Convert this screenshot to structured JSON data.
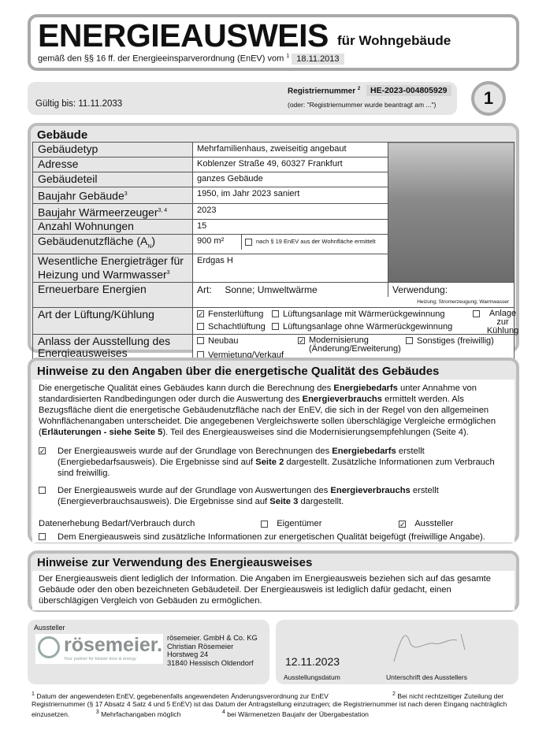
{
  "header": {
    "title": "ENERGIEAUSWEIS",
    "subtitle": "für Wohngebäude",
    "regulation": "gemäß den §§ 16 ff. der Energieeinsparverordnung (EnEV) vom",
    "regulation_sup": "1",
    "regulation_date": "18.11.2013"
  },
  "bar": {
    "valid": "Gültig bis: 11.11.2033",
    "reg_label": "Registriernummer",
    "reg_sup": "2",
    "reg_number": "HE-2023-004805929",
    "reg_note": "(oder: \"Registriernummer wurde beantragt am ...\")",
    "page": "1"
  },
  "building": {
    "heading": "Gebäude",
    "rows": [
      {
        "label": "Gebäudetyp",
        "value": "Mehrfamilienhaus, zweiseitig angebaut"
      },
      {
        "label": "Adresse",
        "value": "Koblenzer Straße 49, 60327 Frankfurt"
      },
      {
        "label": "Gebäudeteil",
        "value": "ganzes Gebäude"
      },
      {
        "label": "Baujahr Gebäude",
        "sup": "3",
        "value": "1950, im Jahr 2023 saniert"
      },
      {
        "label": "Baujahr Wärmeerzeuger",
        "sup": "3, 4",
        "value": "2023"
      },
      {
        "label": "Anzahl Wohnungen",
        "value": "15"
      },
      {
        "label": "Gebäudenutzfläche (A",
        "sub": "N",
        "label_end": ")",
        "value": "900 m²",
        "extra": "nach § 19 EnEV aus der Wohnfläche ermittelt"
      },
      {
        "label": "Wesentliche Energieträger für Heizung und Warmwasser",
        "sup": "3",
        "value": "Erdgas H"
      }
    ],
    "renewable": {
      "label": "Erneuerbare Energien",
      "art_label": "Art:",
      "art": "Sonne; Umweltwärme",
      "use_label": "Verwendung:",
      "use": "Heizung; Stromerzeugung; Warmwasser"
    },
    "ventilation": {
      "label": "Art der Lüftung/Kühlung",
      "options": [
        {
          "label": "Fensterlüftung",
          "checked": true
        },
        {
          "label": "Lüftungsanlage mit Wärmerückgewinnung",
          "checked": false
        },
        {
          "label": "Anlage zur Kühlung",
          "checked": false
        },
        {
          "label": "Schachtlüftung",
          "checked": false
        },
        {
          "label": "Lüftungsanlage ohne Wärmerückgewinnung",
          "checked": false
        }
      ]
    },
    "reason": {
      "label": "Anlass der Ausstellung des Energieausweises",
      "options": [
        {
          "label": "Neubau",
          "checked": false
        },
        {
          "label": "Modernisierung (Änderung/Erweiterung)",
          "checked": true
        },
        {
          "label": "Sonstiges (freiwillig)",
          "checked": false
        },
        {
          "label": "Vermietung/Verkauf",
          "checked": false
        }
      ]
    }
  },
  "notes": {
    "heading": "Hinweise zu den Angaben über die energetische Qualität des Gebäudes",
    "intro_1": "Die energetische Qualität eines Gebäudes kann durch die Berechnung des ",
    "intro_b1": "Energiebedarfs",
    "intro_2": " unter Annahme von standardisierten Randbedingungen oder durch die Auswertung des ",
    "intro_b2": "Energieverbrauchs",
    "intro_3": " ermittelt werden. Als Bezugsfläche dient die energetische Gebäudenutzfläche nach der EnEV, die sich in der Regel von den allgemeinen Wohnflächenangaben unterscheidet. Die angegebenen Vergleichswerte sollen überschlägige Vergleiche ermöglichen (",
    "intro_b3": "Erläuterungen - siehe Seite 5",
    "intro_4": "). Teil des Energieausweises sind die Modernisierungsempfehlungen (Seite 4).",
    "opt1_a": "Der Energieausweis wurde auf der Grundlage von Berechnungen des ",
    "opt1_b": "Energiebedarfs",
    "opt1_c": " erstellt (Energiebedarfsausweis). Die Ergebnisse sind auf ",
    "opt1_d": "Seite 2",
    "opt1_e": " dargestellt. Zusätzliche Informationen zum Verbrauch sind freiwillig.",
    "opt2_a": "Der Energieausweis wurde auf der Grundlage von Auswertungen des ",
    "opt2_b": "Energieverbrauchs",
    "opt2_c": " erstellt (Energieverbrauchsausweis). Die Ergebnisse sind auf ",
    "opt2_d": "Seite 3",
    "opt2_e": " dargestellt.",
    "data_label": "Datenerhebung Bedarf/Verbrauch durch",
    "owner": "Eigentümer",
    "issuer": "Aussteller",
    "extra": "Dem Energieausweis sind zusätzliche Informationen zur energetischen Qualität beigefügt (freiwillige Angabe)."
  },
  "usage": {
    "heading": "Hinweise zur Verwendung des Energieausweises",
    "text": "Der Energieausweis dient lediglich der Information. Die Angaben im Energieausweis beziehen sich auf das gesamte Gebäude oder den oben bezeichneten Gebäudeteil. Der Energieausweis ist lediglich dafür gedacht, einen überschlägigen Vergleich von Gebäuden zu ermöglichen."
  },
  "issuer": {
    "label": "Aussteller",
    "logo": "rösemeier.",
    "logo_tag": "Your partner for blower door & energy",
    "lines": [
      "rösemeier. GmbH & Co. KG",
      "Christian Rösemeier",
      "Horstweg 24",
      "31840 Hessisch Oldendorf"
    ],
    "date": "12.11.2023",
    "date_label": "Ausstellungsdatum",
    "sign_label": "Unterschrift des Ausstellers"
  },
  "footnotes": {
    "f1": "Datum der angewendeten EnEV, gegebenenfalls angewendeten Änderungsverordnung zur EnEV",
    "f2": "Bei nicht rechtzeitiger Zuteilung der Registriernummer (§ 17 Absatz 4 Satz 4 und 5 EnEV) ist das Datum der Antragstellung einzutragen; die Registriernummer ist nach deren Eingang nachträglich einzusetzen.",
    "f3": "Mehrfachangaben möglich",
    "f4": "bei Wärmenetzen Baujahr der Übergabestation"
  }
}
